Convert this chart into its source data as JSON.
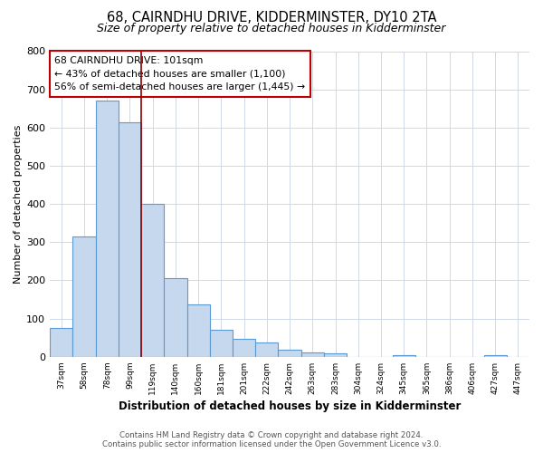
{
  "title": "68, CAIRNDHU DRIVE, KIDDERMINSTER, DY10 2TA",
  "subtitle": "Size of property relative to detached houses in Kidderminster",
  "xlabel": "Distribution of detached houses by size in Kidderminster",
  "ylabel": "Number of detached properties",
  "bar_labels": [
    "37sqm",
    "58sqm",
    "78sqm",
    "99sqm",
    "119sqm",
    "140sqm",
    "160sqm",
    "181sqm",
    "201sqm",
    "222sqm",
    "242sqm",
    "263sqm",
    "283sqm",
    "304sqm",
    "324sqm",
    "345sqm",
    "365sqm",
    "386sqm",
    "406sqm",
    "427sqm",
    "447sqm"
  ],
  "bar_values": [
    75,
    315,
    670,
    615,
    400,
    207,
    138,
    70,
    48,
    37,
    18,
    12,
    10,
    0,
    0,
    5,
    0,
    0,
    0,
    5,
    0
  ],
  "bar_color": "#c5d8ee",
  "bar_edge_color": "#5b9bd5",
  "property_line_x": 3,
  "property_line_color": "#8b0000",
  "ylim": [
    0,
    800
  ],
  "yticks": [
    0,
    100,
    200,
    300,
    400,
    500,
    600,
    700,
    800
  ],
  "annotation_title": "68 CAIRNDHU DRIVE: 101sqm",
  "annotation_line1": "← 43% of detached houses are smaller (1,100)",
  "annotation_line2": "56% of semi-detached houses are larger (1,445) →",
  "annotation_box_color": "#ffffff",
  "annotation_box_edge": "#c00000",
  "footer_line1": "Contains HM Land Registry data © Crown copyright and database right 2024.",
  "footer_line2": "Contains public sector information licensed under the Open Government Licence v3.0.",
  "bg_color": "#ffffff",
  "grid_color": "#d0d8e8",
  "title_fontsize": 10.5,
  "subtitle_fontsize": 9,
  "axis_label_fontsize": 8.5,
  "ylabel_fontsize": 8
}
